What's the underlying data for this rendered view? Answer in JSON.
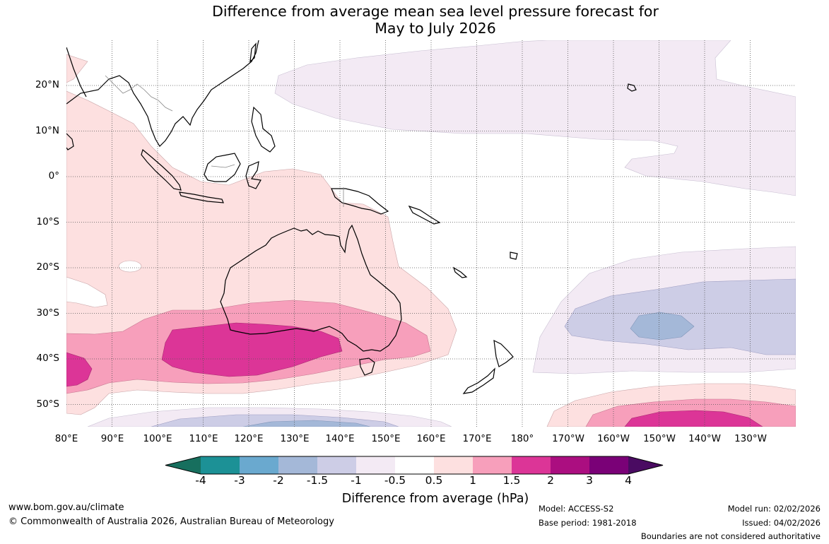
{
  "title_line1": "Difference from average mean sea level pressure forecast for",
  "title_line2": "May to July 2026",
  "lat_labels": [
    "20°N",
    "10°N",
    "0°",
    "10°S",
    "20°S",
    "30°S",
    "40°S",
    "50°S"
  ],
  "lon_labels": [
    "80°E",
    "90°E",
    "100°E",
    "110°E",
    "120°E",
    "130°E",
    "140°E",
    "150°E",
    "160°E",
    "170°E",
    "180°",
    "170°W",
    "160°W",
    "150°W",
    "140°W",
    "130°W"
  ],
  "colorbar": {
    "ticks": [
      "-4",
      "-3",
      "-2",
      "-1.5",
      "-1",
      "-0.5",
      "0.5",
      "1",
      "1.5",
      "2",
      "3",
      "4"
    ],
    "colors": [
      "#176f5e",
      "#1c9196",
      "#6aa9cf",
      "#a4b8d8",
      "#cdcde6",
      "#f3eaf4",
      "#ffffff",
      "#fde0e0",
      "#f79fbb",
      "#dc3597",
      "#ab0e80",
      "#7a0177",
      "#4a0b62"
    ],
    "label": "Difference from average (hPa)"
  },
  "footer": {
    "url": "www.bom.gov.au/climate",
    "copyright": "© Commonwealth of Australia 2026, Australian Bureau of Meteorology",
    "model": "Model: ACCESS-S2",
    "base_period": "Base period: 1981-2018",
    "model_run": "Model run: 02/02/2026",
    "issued": "Issued: 04/02/2026",
    "disclaimer": "Boundaries are not considered authoritative"
  }
}
